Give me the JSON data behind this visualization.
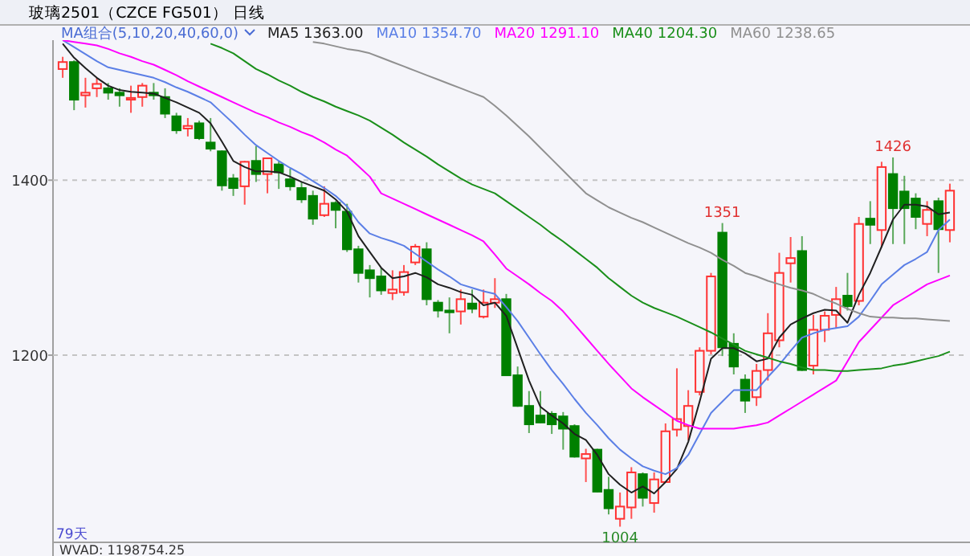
{
  "chart_data": {
    "type": "candlestick",
    "title": "玻璃2501（CZCE FG501） 日线",
    "legend_title": "MA组合(5,10,20,40,60,0)",
    "categories": [
      null,
      null,
      null,
      null,
      null,
      null,
      null,
      null,
      null,
      null,
      null,
      null,
      null,
      null,
      null,
      null,
      null,
      null,
      null,
      null,
      null,
      null,
      null,
      null,
      null,
      null,
      null,
      null,
      null,
      null,
      null,
      null,
      null,
      null,
      null,
      null,
      null,
      null,
      null,
      null,
      null,
      null,
      null,
      null,
      null,
      null,
      null,
      null,
      null,
      null,
      null,
      null,
      null,
      null,
      null,
      null,
      null,
      null,
      null,
      null,
      null,
      null,
      null,
      null,
      null,
      null,
      null,
      null,
      null,
      null,
      null,
      null,
      null,
      null,
      null,
      null,
      null,
      null,
      null
    ],
    "ohlc": [
      [
        1527,
        1541,
        1517,
        1535
      ],
      [
        1535,
        1537,
        1480,
        1492
      ],
      [
        1497,
        1517,
        1483,
        1500
      ],
      [
        1505,
        1517,
        1495,
        1510
      ],
      [
        1505,
        1511,
        1492,
        1500
      ],
      [
        1500,
        1505,
        1484,
        1497
      ],
      [
        1492,
        1508,
        1477,
        1494
      ],
      [
        1495,
        1511,
        1484,
        1508
      ],
      [
        1500,
        1511,
        1492,
        1497
      ],
      [
        1495,
        1505,
        1471,
        1476
      ],
      [
        1473,
        1477,
        1453,
        1457
      ],
      [
        1459,
        1471,
        1450,
        1462
      ],
      [
        1465,
        1468,
        1446,
        1448
      ],
      [
        1443,
        1471,
        1433,
        1436
      ],
      [
        1433,
        1434,
        1388,
        1394
      ],
      [
        1402,
        1407,
        1382,
        1391
      ],
      [
        1393,
        1422,
        1372,
        1421
      ],
      [
        1422,
        1439,
        1398,
        1407
      ],
      [
        1407,
        1425,
        1385,
        1425
      ],
      [
        1418,
        1422,
        1390,
        1409
      ],
      [
        1401,
        1413,
        1388,
        1393
      ],
      [
        1391,
        1398,
        1374,
        1378
      ],
      [
        1382,
        1388,
        1349,
        1356
      ],
      [
        1360,
        1393,
        1358,
        1373
      ],
      [
        1374,
        1376,
        1345,
        1366
      ],
      [
        1364,
        1373,
        1318,
        1321
      ],
      [
        1321,
        1325,
        1283,
        1294
      ],
      [
        1297,
        1303,
        1266,
        1288
      ],
      [
        1290,
        1300,
        1269,
        1274
      ],
      [
        1271,
        1297,
        1263,
        1275
      ],
      [
        1272,
        1303,
        1268,
        1295
      ],
      [
        1306,
        1327,
        1303,
        1324
      ],
      [
        1321,
        1329,
        1257,
        1264
      ],
      [
        1260,
        1263,
        1243,
        1251
      ],
      [
        1251,
        1266,
        1225,
        1249
      ],
      [
        1250,
        1275,
        1235,
        1264
      ],
      [
        1259,
        1275,
        1248,
        1253
      ],
      [
        1244,
        1275,
        1242,
        1260
      ],
      [
        1260,
        1288,
        1254,
        1264
      ],
      [
        1264,
        1270,
        1177,
        1177
      ],
      [
        1177,
        1187,
        1141,
        1142
      ],
      [
        1142,
        1159,
        1111,
        1121
      ],
      [
        1131,
        1159,
        1122,
        1123
      ],
      [
        1133,
        1136,
        1110,
        1121
      ],
      [
        1130,
        1135,
        1092,
        1116
      ],
      [
        1119,
        1121,
        1083,
        1084
      ],
      [
        1082,
        1093,
        1055,
        1087
      ],
      [
        1092,
        1093,
        1043,
        1044
      ],
      [
        1046,
        1061,
        1018,
        1025
      ],
      [
        1013,
        1043,
        1004,
        1027
      ],
      [
        1026,
        1072,
        1013,
        1066
      ],
      [
        1064,
        1066,
        1027,
        1037
      ],
      [
        1031,
        1066,
        1020,
        1058
      ],
      [
        1055,
        1122,
        1054,
        1113
      ],
      [
        1115,
        1185,
        1107,
        1127
      ],
      [
        1119,
        1160,
        1103,
        1142
      ],
      [
        1158,
        1209,
        1154,
        1205
      ],
      [
        1205,
        1294,
        1201,
        1290
      ],
      [
        1340,
        1351,
        1199,
        1209
      ],
      [
        1213,
        1225,
        1178,
        1187
      ],
      [
        1172,
        1178,
        1134,
        1148
      ],
      [
        1152,
        1190,
        1142,
        1182
      ],
      [
        1183,
        1248,
        1171,
        1225
      ],
      [
        1217,
        1317,
        1209,
        1294
      ],
      [
        1305,
        1335,
        1283,
        1311
      ],
      [
        1319,
        1336,
        1182,
        1183
      ],
      [
        1188,
        1246,
        1178,
        1229
      ],
      [
        1229,
        1250,
        1215,
        1245
      ],
      [
        1246,
        1278,
        1231,
        1264
      ],
      [
        1268,
        1294,
        1251,
        1256
      ],
      [
        1262,
        1358,
        1257,
        1350
      ],
      [
        1356,
        1376,
        1327,
        1349
      ],
      [
        1343,
        1421,
        1323,
        1415
      ],
      [
        1407,
        1426,
        1327,
        1368
      ],
      [
        1387,
        1405,
        1327,
        1368
      ],
      [
        1379,
        1385,
        1344,
        1358
      ],
      [
        1350,
        1376,
        1336,
        1366
      ],
      [
        1376,
        1380,
        1294,
        1344
      ],
      [
        1343,
        1396,
        1329,
        1388
      ]
    ],
    "series": [
      {
        "name": "MA5 1363.00",
        "type": "line",
        "color": "#202020",
        "values": [
          1556,
          1540,
          1528,
          1517,
          1508,
          1503,
          1501,
          1500,
          1499,
          1494,
          1489,
          1483,
          1477,
          1465,
          1444,
          1422,
          1415,
          1410,
          1410,
          1409,
          1404,
          1398,
          1393,
          1388,
          1378,
          1364,
          1336,
          1318,
          1300,
          1288,
          1290,
          1294,
          1289,
          1281,
          1277,
          1272,
          1269,
          1257,
          1260,
          1245,
          1208,
          1171,
          1141,
          1131,
          1122,
          1110,
          1103,
          1086,
          1064,
          1052,
          1043,
          1050,
          1042,
          1055,
          1070,
          1101,
          1147,
          1196,
          1208,
          1208,
          1202,
          1193,
          1196,
          1220,
          1235,
          1242,
          1248,
          1252,
          1251,
          1237,
          1269,
          1294,
          1324,
          1355,
          1372,
          1372,
          1370,
          1361,
          1363
        ]
      },
      {
        "name": "MA10 1354.70",
        "type": "line",
        "color": "#5b7fe6",
        "values": [
          1560,
          1552,
          1544,
          1536,
          1529,
          1526,
          1523,
          1520,
          1517,
          1512,
          1506,
          1501,
          1495,
          1489,
          1477,
          1465,
          1452,
          1440,
          1431,
          1422,
          1414,
          1407,
          1399,
          1391,
          1382,
          1370,
          1352,
          1339,
          1334,
          1330,
          1325,
          1316,
          1307,
          1298,
          1290,
          1281,
          1277,
          1273,
          1270,
          1255,
          1239,
          1220,
          1201,
          1183,
          1167,
          1150,
          1134,
          1120,
          1105,
          1092,
          1082,
          1073,
          1068,
          1064,
          1071,
          1086,
          1110,
          1134,
          1147,
          1160,
          1160,
          1160,
          1175,
          1189,
          1205,
          1220,
          1225,
          1229,
          1231,
          1233,
          1244,
          1262,
          1281,
          1292,
          1303,
          1310,
          1318,
          1343,
          1355
        ]
      },
      {
        "name": "MA20 1291.10",
        "type": "line",
        "color": "#ff00ff",
        "values": [
          1560,
          1558,
          1556,
          1554,
          1550,
          1545,
          1541,
          1536,
          1532,
          1526,
          1520,
          1513,
          1507,
          1501,
          1495,
          1489,
          1483,
          1477,
          1472,
          1466,
          1461,
          1455,
          1450,
          1443,
          1435,
          1428,
          1416,
          1404,
          1385,
          1379,
          1373,
          1367,
          1361,
          1355,
          1349,
          1343,
          1337,
          1330,
          1315,
          1299,
          1290,
          1281,
          1271,
          1262,
          1250,
          1235,
          1220,
          1205,
          1190,
          1176,
          1162,
          1152,
          1143,
          1134,
          1125,
          1120,
          1116,
          1116,
          1116,
          1116,
          1118,
          1120,
          1123,
          1131,
          1139,
          1147,
          1155,
          1163,
          1171,
          1193,
          1215,
          1229,
          1243,
          1257,
          1265,
          1273,
          1281,
          1286,
          1291
        ]
      },
      {
        "name": "MA40 1204.30",
        "type": "line",
        "color": "#1a8f1a",
        "values": [
          null,
          null,
          null,
          null,
          null,
          null,
          null,
          null,
          null,
          null,
          null,
          null,
          null,
          1556,
          1551,
          1545,
          1536,
          1527,
          1521,
          1514,
          1508,
          1501,
          1495,
          1490,
          1484,
          1479,
          1474,
          1468,
          1460,
          1452,
          1443,
          1435,
          1427,
          1418,
          1410,
          1402,
          1395,
          1390,
          1385,
          1376,
          1367,
          1358,
          1349,
          1339,
          1330,
          1320,
          1310,
          1300,
          1288,
          1278,
          1268,
          1260,
          1254,
          1249,
          1244,
          1238,
          1232,
          1226,
          1219,
          1212,
          1205,
          1201,
          1197,
          1193,
          1190,
          1186,
          1183,
          1183,
          1182,
          1182,
          1183,
          1184,
          1185,
          1188,
          1190,
          1193,
          1196,
          1199,
          1204
        ]
      },
      {
        "name": "MA60 1238.65",
        "type": "line",
        "color": "#909090",
        "values": [
          null,
          null,
          null,
          null,
          null,
          null,
          null,
          null,
          null,
          null,
          null,
          null,
          null,
          null,
          null,
          null,
          null,
          null,
          null,
          null,
          null,
          null,
          1558,
          1556,
          1553,
          1550,
          1548,
          1545,
          1540,
          1535,
          1530,
          1525,
          1520,
          1515,
          1510,
          1505,
          1500,
          1495,
          1485,
          1474,
          1462,
          1450,
          1437,
          1424,
          1411,
          1398,
          1385,
          1377,
          1369,
          1363,
          1357,
          1352,
          1346,
          1340,
          1334,
          1328,
          1323,
          1317,
          1309,
          1302,
          1294,
          1290,
          1285,
          1281,
          1277,
          1274,
          1270,
          1264,
          1259,
          1253,
          1248,
          1244,
          1243,
          1243,
          1242,
          1242,
          1241,
          1240,
          1239
        ]
      }
    ],
    "ylim": [
      987,
      1560
    ],
    "yticks": [
      1200,
      1400
    ],
    "grid": "y",
    "legend": "top left",
    "annotations": [
      {
        "text": "1426",
        "y": 1426
      },
      {
        "text": "1351",
        "y": 1351
      },
      {
        "text": "1004",
        "y": 1004
      },
      "79天",
      "WVAD: 1198754.25"
    ]
  }
}
